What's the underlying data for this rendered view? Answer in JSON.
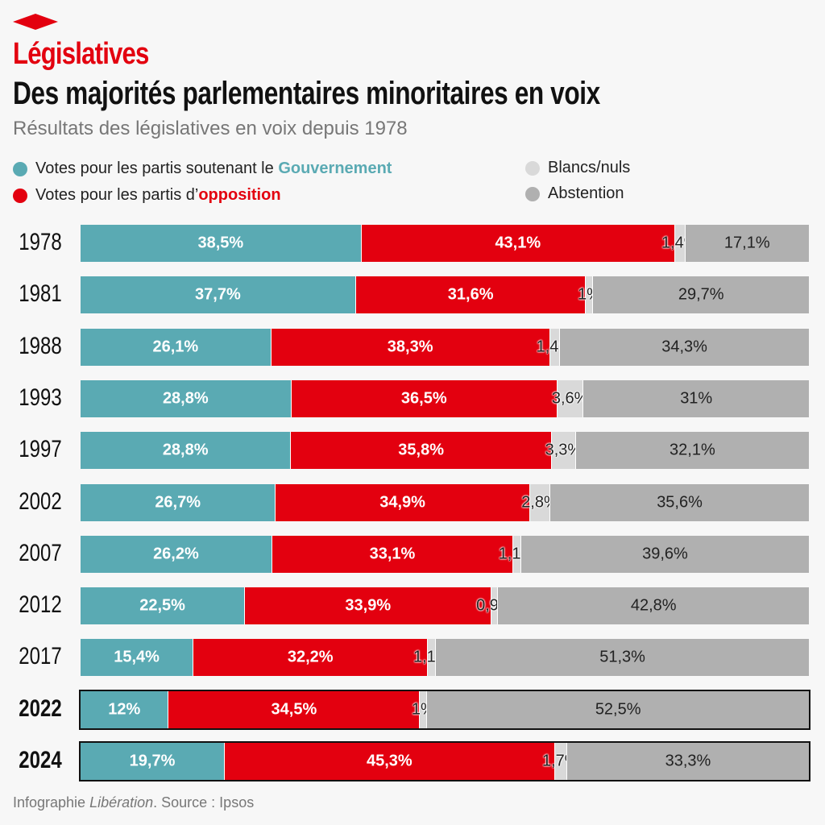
{
  "header": {
    "kicker": "Législatives",
    "title": "Des majorités parlementaires minoritaires en voix",
    "subtitle": "Résultats des législatives en voix depuis 1978"
  },
  "legend": {
    "gov_prefix": "Votes pour les partis soutenant le ",
    "gov_highlight": "Gouvernement",
    "opp_prefix": "Votes pour les partis d’",
    "opp_highlight": "opposition",
    "blank": "Blancs/nuls",
    "abst": "Abstention"
  },
  "colors": {
    "gov": "#5aaab3",
    "opp": "#e3000f",
    "blank": "#d9d9d9",
    "abst": "#b0b0b0"
  },
  "footer": {
    "prefix": "Infographie ",
    "brand": "Libération",
    "suffix": ". Source : Ipsos"
  },
  "chart_data": {
    "type": "bar",
    "orientation": "horizontal-stacked-100",
    "title": "Des majorités parlementaires minoritaires en voix",
    "subtitle": "Résultats des législatives en voix depuis 1978",
    "categories": [
      "1978",
      "1981",
      "1988",
      "1993",
      "1997",
      "2002",
      "2007",
      "2012",
      "2017",
      "2022",
      "2024"
    ],
    "highlighted": [
      "2022",
      "2024"
    ],
    "series": [
      {
        "name": "Votes pour les partis soutenant le Gouvernement",
        "values": [
          38.5,
          37.7,
          26.1,
          28.8,
          28.8,
          26.7,
          26.2,
          22.5,
          15.4,
          12,
          19.7
        ],
        "labels": [
          "38,5%",
          "37,7%",
          "26,1%",
          "28,8%",
          "28,8%",
          "26,7%",
          "26,2%",
          "22,5%",
          "15,4%",
          "12%",
          "19,7%"
        ]
      },
      {
        "name": "Votes pour les partis d'opposition",
        "values": [
          43.1,
          31.6,
          38.3,
          36.5,
          35.8,
          34.9,
          33.1,
          33.9,
          32.2,
          34.5,
          45.3
        ],
        "labels": [
          "43,1%",
          "31,6%",
          "38,3%",
          "36,5%",
          "35,8%",
          "34,9%",
          "33,1%",
          "33,9%",
          "32,2%",
          "34,5%",
          "45,3%"
        ]
      },
      {
        "name": "Blancs/nuls",
        "values": [
          1.4,
          1,
          1.4,
          3.6,
          3.3,
          2.8,
          1.1,
          0.9,
          1.1,
          1,
          1.7
        ],
        "labels": [
          "1,4%",
          "1%",
          "1,4%",
          "3,6%",
          "3,3%",
          "2,8%",
          "1,1%",
          "0,9%",
          "1,1%",
          "1%",
          "1,7%"
        ]
      },
      {
        "name": "Abstention",
        "values": [
          17.1,
          29.7,
          34.3,
          31,
          32.1,
          35.6,
          39.6,
          42.8,
          51.3,
          52.5,
          33.3
        ],
        "labels": [
          "17,1%",
          "29,7%",
          "34,3%",
          "31%",
          "32,1%",
          "35,6%",
          "39,6%",
          "42,8%",
          "51,3%",
          "52,5%",
          "33,3%"
        ]
      }
    ],
    "xlim": [
      0,
      100
    ],
    "grid": false,
    "legend_position": "top"
  }
}
